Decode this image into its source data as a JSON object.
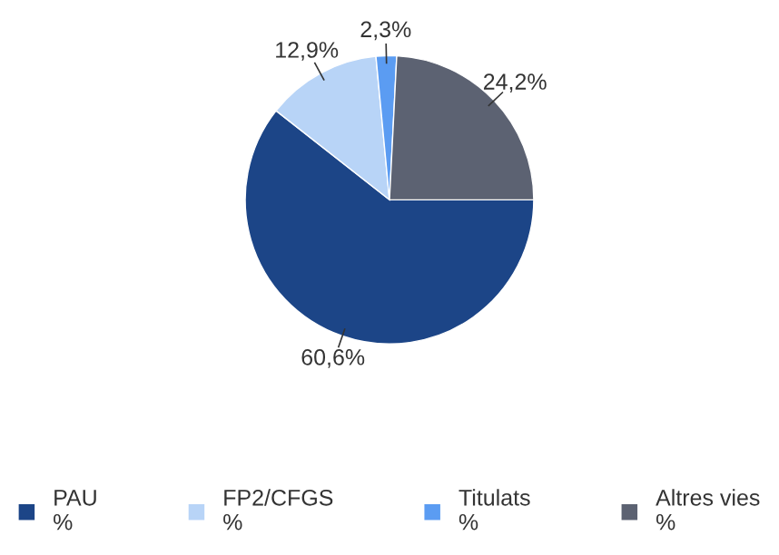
{
  "chart_data": {
    "type": "pie",
    "categories": [
      "PAU\n%",
      "FP2/CFGS\n%",
      "Titulats\n%",
      "Altres vies\n%"
    ],
    "values": [
      60.6,
      12.9,
      2.3,
      24.2
    ],
    "colors": [
      "#1c4587",
      "#b8d4f7",
      "#5b9cf2",
      "#5c6272"
    ],
    "value_labels": [
      "60,6%",
      "12,9%",
      "2,3%",
      "24,2%"
    ],
    "legend": "bottom"
  }
}
